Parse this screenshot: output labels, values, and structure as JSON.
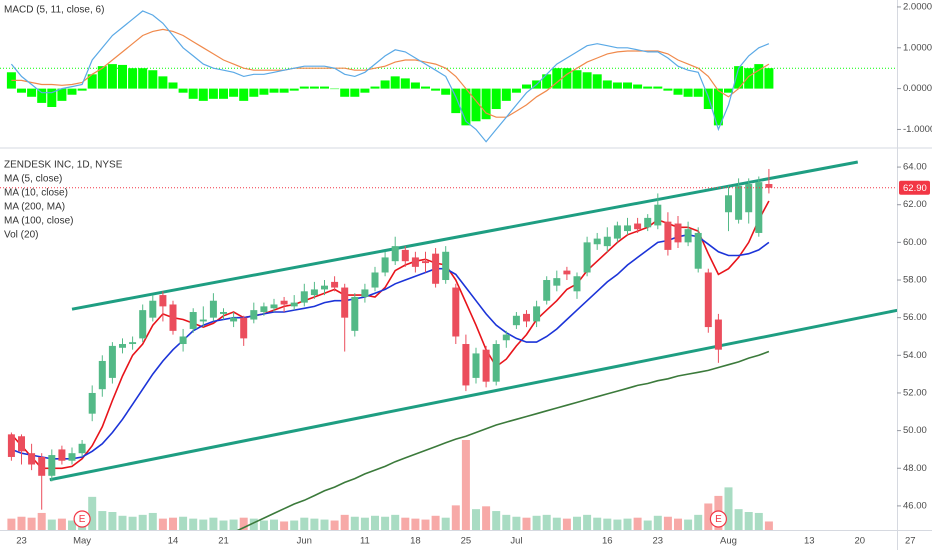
{
  "chart_data": [
    {
      "type": "macd",
      "title": "MACD (5, 11, close, 6)",
      "ylim": [
        -1.43,
        2.17
      ],
      "yticks": [
        {
          "value": 2,
          "label": "2.0000"
        },
        {
          "value": 1,
          "label": "1.0000"
        },
        {
          "value": 0,
          "label": "0.0000"
        },
        {
          "value": -1,
          "label": "-1.0000"
        }
      ],
      "histogram": {
        "color": "#00ff00",
        "values": [
          0.4,
          -0.1,
          -0.2,
          -0.35,
          -0.45,
          -0.3,
          -0.15,
          -0.05,
          0.35,
          0.55,
          0.6,
          0.58,
          0.5,
          0.5,
          0.45,
          0.3,
          0.15,
          -0.1,
          -0.25,
          -0.3,
          -0.25,
          -0.25,
          -0.2,
          -0.3,
          -0.2,
          -0.15,
          -0.1,
          -0.1,
          -0.05,
          0.05,
          0.05,
          0.05,
          0.0,
          -0.2,
          -0.2,
          -0.1,
          0.05,
          0.2,
          0.3,
          0.25,
          0.15,
          0.05,
          -0.05,
          -0.15,
          -0.6,
          -0.9,
          -0.8,
          -0.75,
          -0.5,
          -0.3,
          -0.1,
          0.1,
          0.2,
          0.35,
          0.5,
          0.5,
          0.45,
          0.4,
          0.35,
          0.2,
          0.15,
          0.15,
          0.1,
          0.05,
          0.05,
          -0.05,
          -0.15,
          -0.2,
          -0.2,
          -0.5,
          -0.9,
          -0.1,
          0.55,
          0.5,
          0.6,
          0.5,
          null,
          null,
          null,
          null,
          null,
          null,
          null,
          null,
          null,
          null,
          null,
          null,
          null,
          null
        ]
      },
      "macd": {
        "color": "#5aa9e6",
        "values": [
          0.6,
          0.3,
          0.1,
          -0.1,
          -0.1,
          0.0,
          0.05,
          0.1,
          0.7,
          1.0,
          1.3,
          1.5,
          1.7,
          1.9,
          1.8,
          1.6,
          1.3,
          1.0,
          0.8,
          0.6,
          0.5,
          0.45,
          0.4,
          0.3,
          0.35,
          0.35,
          0.4,
          0.45,
          0.5,
          0.55,
          0.55,
          0.55,
          0.5,
          0.35,
          0.3,
          0.4,
          0.6,
          0.8,
          0.95,
          0.9,
          0.75,
          0.6,
          0.45,
          0.3,
          -0.2,
          -0.8,
          -1.0,
          -1.3,
          -1.0,
          -0.7,
          -0.4,
          -0.1,
          0.1,
          0.35,
          0.6,
          0.75,
          0.9,
          1.05,
          1.1,
          1.05,
          1.0,
          1.0,
          0.95,
          0.9,
          0.9,
          0.75,
          0.55,
          0.45,
          0.4,
          -0.2,
          -1.0,
          -0.4,
          0.5,
          0.8,
          1.0,
          1.1,
          null,
          null,
          null,
          null,
          null,
          null,
          null,
          null,
          null,
          null,
          null,
          null,
          null,
          null
        ]
      },
      "signal": {
        "color": "#f0894b",
        "values": [
          0.2,
          0.2,
          0.15,
          0.1,
          0.1,
          0.08,
          0.1,
          0.15,
          0.35,
          0.5,
          0.7,
          0.9,
          1.1,
          1.3,
          1.4,
          1.45,
          1.4,
          1.3,
          1.15,
          1.0,
          0.85,
          0.7,
          0.6,
          0.5,
          0.45,
          0.45,
          0.45,
          0.45,
          0.5,
          0.5,
          0.5,
          0.5,
          0.5,
          0.5,
          0.45,
          0.45,
          0.5,
          0.55,
          0.65,
          0.7,
          0.7,
          0.65,
          0.6,
          0.5,
          0.3,
          0.0,
          -0.3,
          -0.6,
          -0.7,
          -0.7,
          -0.55,
          -0.4,
          -0.2,
          -0.05,
          0.15,
          0.35,
          0.5,
          0.65,
          0.75,
          0.85,
          0.9,
          0.92,
          0.92,
          0.92,
          0.92,
          0.85,
          0.7,
          0.6,
          0.5,
          0.3,
          -0.05,
          -0.2,
          0.0,
          0.3,
          0.45,
          0.6,
          null,
          null,
          null,
          null,
          null,
          null,
          null,
          null,
          null,
          null,
          null,
          null,
          null,
          null
        ]
      }
    },
    {
      "type": "candlestick",
      "title": "ZENDESK INC, 1D, NYSE",
      "categories": [
        null,
        "23",
        null,
        null,
        null,
        null,
        null,
        "May",
        null,
        null,
        null,
        null,
        null,
        null,
        null,
        null,
        "14",
        null,
        null,
        null,
        null,
        "21",
        null,
        null,
        null,
        null,
        null,
        null,
        null,
        "Jun",
        null,
        null,
        null,
        null,
        null,
        "11",
        null,
        null,
        null,
        null,
        "18",
        null,
        null,
        null,
        null,
        "25",
        null,
        null,
        null,
        null,
        "Jul",
        null,
        null,
        null,
        null,
        null,
        null,
        null,
        null,
        "16",
        null,
        null,
        null,
        null,
        "23",
        null,
        null,
        null,
        null,
        null,
        null,
        "Aug",
        null,
        null,
        null,
        null,
        null,
        null,
        null,
        "13",
        null,
        null,
        null,
        null,
        "20",
        null,
        null,
        null,
        null,
        "27"
      ],
      "open": [
        49.8,
        49.7,
        48.8,
        48.6,
        47.6,
        49.0,
        48.4,
        48.8,
        50.9,
        52.2,
        52.8,
        54.4,
        54.6,
        54.9,
        56.0,
        57.2,
        56.7,
        54.6,
        55.4,
        55.8,
        56.0,
        56.2,
        55.8,
        56.0,
        55.9,
        56.3,
        56.5,
        56.9,
        56.6,
        56.8,
        57.2,
        57.5,
        57.9,
        57.6,
        55.3,
        57.1,
        57.6,
        58.4,
        59.0,
        59.6,
        59.2,
        59.0,
        59.4,
        58.0,
        57.6,
        54.6,
        52.8,
        54.3,
        52.6,
        54.8,
        55.6,
        56.2,
        55.8,
        56.9,
        57.7,
        58.5,
        57.4,
        58.4,
        59.9,
        59.8,
        60.2,
        60.6,
        61.0,
        60.8,
        60.9,
        61.1,
        61.0,
        60.0,
        58.6,
        58.4,
        55.9,
        61.6,
        61.2,
        61.6,
        60.5,
        63.1,
        null,
        null,
        null,
        null,
        null,
        null,
        null,
        null,
        null,
        null,
        null,
        null,
        null,
        null
      ],
      "high": [
        49.9,
        49.8,
        49.3,
        48.8,
        49.0,
        49.2,
        49.1,
        49.5,
        52.4,
        54.0,
        54.7,
        54.9,
        55.0,
        56.7,
        57.2,
        57.4,
        56.9,
        55.4,
        56.5,
        56.6,
        57.3,
        56.5,
        56.3,
        56.1,
        56.8,
        56.8,
        57.0,
        57.1,
        57.2,
        57.8,
        57.9,
        58.0,
        58.2,
        57.8,
        57.3,
        57.8,
        58.7,
        59.5,
        60.3,
        59.8,
        59.5,
        59.5,
        59.7,
        59.8,
        57.8,
        55.1,
        54.4,
        54.5,
        54.8,
        55.3,
        56.3,
        56.4,
        56.9,
        58.2,
        58.5,
        58.7,
        58.4,
        60.3,
        60.5,
        60.8,
        61.1,
        61.3,
        61.3,
        61.5,
        62.6,
        61.6,
        61.4,
        61.1,
        60.8,
        58.6,
        56.2,
        63.0,
        63.4,
        63.4,
        63.5,
        63.9,
        null,
        null,
        null,
        null,
        null,
        null,
        null,
        null,
        null,
        null,
        null,
        null,
        null,
        null
      ],
      "low": [
        48.4,
        48.2,
        47.9,
        45.8,
        47.3,
        48.2,
        48.2,
        48.6,
        50.5,
        51.8,
        52.5,
        54.1,
        54.3,
        54.7,
        55.8,
        55.8,
        55.1,
        54.2,
        55.2,
        55.5,
        55.8,
        55.9,
        55.5,
        54.5,
        55.7,
        56.1,
        56.3,
        56.3,
        56.4,
        56.6,
        57.0,
        57.2,
        57.4,
        54.2,
        55.0,
        56.8,
        57.4,
        58.2,
        58.8,
        58.7,
        58.4,
        58.4,
        57.6,
        57.8,
        54.6,
        52.1,
        52.5,
        52.3,
        52.4,
        54.4,
        55.4,
        55.5,
        55.5,
        56.7,
        57.4,
        58.0,
        57.0,
        58.2,
        59.6,
        59.5,
        60.0,
        60.4,
        60.5,
        60.6,
        60.7,
        59.3,
        59.7,
        59.8,
        58.4,
        55.2,
        53.6,
        60.6,
        61.0,
        61.0,
        60.3,
        62.6,
        null,
        null,
        null,
        null,
        null,
        null,
        null,
        null,
        null,
        null,
        null,
        null,
        null,
        null
      ],
      "close": [
        48.6,
        48.9,
        48.2,
        47.6,
        48.7,
        48.4,
        48.8,
        49.3,
        52.0,
        53.7,
        54.5,
        54.6,
        54.7,
        56.4,
        56.9,
        56.6,
        55.3,
        55.0,
        56.3,
        55.9,
        56.9,
        56.3,
        56.0,
        54.9,
        56.4,
        56.6,
        56.7,
        56.7,
        56.8,
        57.4,
        57.5,
        57.7,
        57.6,
        56.0,
        57.1,
        57.5,
        58.4,
        59.2,
        59.8,
        59.0,
        58.7,
        58.9,
        57.8,
        59.5,
        55.0,
        52.4,
        54.1,
        52.6,
        54.6,
        55.1,
        56.1,
        55.8,
        56.6,
        58.0,
        58.1,
        58.3,
        58.2,
        60.0,
        60.2,
        60.3,
        60.9,
        60.9,
        60.7,
        61.3,
        62.0,
        59.6,
        60.0,
        60.7,
        60.5,
        55.5,
        54.3,
        62.5,
        63.0,
        63.1,
        63.2,
        62.9,
        null,
        null,
        null,
        null,
        null,
        null,
        null,
        null,
        null,
        null,
        null,
        null,
        null,
        null
      ],
      "up_color": "#53b987",
      "down_color": "#eb4d5c",
      "ylim": [
        44.72,
        64.96
      ],
      "yticks": [
        {
          "value": 46,
          "label": "46.00"
        },
        {
          "value": 48,
          "label": "48.00"
        },
        {
          "value": 50,
          "label": "50.00"
        },
        {
          "value": 52,
          "label": "52.00"
        },
        {
          "value": 54,
          "label": "54.00"
        },
        {
          "value": 56,
          "label": "56.00"
        },
        {
          "value": 58,
          "label": "58.00"
        },
        {
          "value": 60,
          "label": "60.00"
        },
        {
          "value": 62,
          "label": "62.00"
        },
        {
          "value": 64,
          "label": "64.00"
        }
      ],
      "series": [
        {
          "name": "MA (5, close)",
          "color": "#e8141b",
          "values": [
            49.8,
            49.2,
            48.6,
            48.0,
            48.0,
            48.0,
            48.1,
            48.5,
            49.2,
            50.2,
            51.6,
            52.9,
            54.0,
            54.6,
            55.6,
            56.2,
            56.0,
            55.9,
            55.7,
            55.5,
            55.7,
            56.1,
            56.3,
            56.0,
            56.1,
            56.2,
            56.4,
            56.6,
            56.7,
            56.9,
            57.1,
            57.3,
            57.5,
            57.2,
            57.2,
            57.2,
            57.1,
            57.6,
            58.5,
            58.8,
            59.0,
            59.1,
            58.9,
            58.8,
            58.0,
            56.8,
            55.6,
            54.3,
            53.4,
            53.8,
            54.5,
            55.1,
            55.9,
            56.4,
            56.9,
            57.5,
            57.8,
            58.5,
            59.0,
            59.5,
            60.0,
            60.4,
            60.6,
            60.8,
            61.2,
            61.0,
            60.8,
            60.8,
            60.6,
            59.4,
            58.3,
            58.6,
            59.2,
            60.0,
            61.2,
            62.2,
            null,
            null,
            null,
            null,
            null,
            null,
            null,
            null,
            null,
            null,
            null,
            null,
            null,
            null
          ]
        },
        {
          "name": "MA (10, close)",
          "color": "#1c34d8",
          "values": [
            49.0,
            48.8,
            48.7,
            48.6,
            48.5,
            48.5,
            48.5,
            48.6,
            48.9,
            49.3,
            49.9,
            50.6,
            51.4,
            52.2,
            53.0,
            53.7,
            54.3,
            54.8,
            55.3,
            55.6,
            55.8,
            55.9,
            56.0,
            56.0,
            56.1,
            56.2,
            56.3,
            56.3,
            56.4,
            56.5,
            56.6,
            56.8,
            56.9,
            56.9,
            57.0,
            57.1,
            57.3,
            57.5,
            57.8,
            58.0,
            58.2,
            58.4,
            58.6,
            58.6,
            58.3,
            57.6,
            56.9,
            56.2,
            55.6,
            55.2,
            54.9,
            54.7,
            54.7,
            55.0,
            55.4,
            55.9,
            56.4,
            56.9,
            57.4,
            57.9,
            58.3,
            58.8,
            59.2,
            59.6,
            60.0,
            60.1,
            60.3,
            60.4,
            60.3,
            59.9,
            59.5,
            59.3,
            59.3,
            59.4,
            59.6,
            60.0,
            null,
            null,
            null,
            null,
            null,
            null,
            null,
            null,
            null,
            null,
            null,
            null,
            null,
            null
          ]
        },
        {
          "name": "MA (200, MA)",
          "color": "#3b7a3b",
          "values": [
            null,
            null,
            null,
            null,
            null,
            null,
            null,
            null,
            null,
            null,
            null,
            null,
            null,
            null,
            null,
            null,
            null,
            null,
            null,
            null,
            null,
            null,
            44.6,
            44.85,
            45.1,
            45.35,
            45.6,
            45.85,
            46.1,
            46.3,
            46.55,
            46.8,
            47.0,
            47.25,
            47.45,
            47.7,
            47.9,
            48.1,
            48.35,
            48.55,
            48.75,
            48.95,
            49.15,
            49.35,
            49.55,
            49.7,
            49.9,
            50.1,
            50.3,
            50.45,
            50.6,
            50.75,
            50.9,
            51.05,
            51.2,
            51.35,
            51.5,
            51.65,
            51.8,
            51.95,
            52.1,
            52.25,
            52.4,
            52.5,
            52.65,
            52.75,
            52.9,
            53.0,
            53.1,
            53.2,
            53.35,
            53.5,
            53.65,
            53.85,
            54.0,
            54.2,
            null,
            null,
            null,
            null,
            null,
            null,
            null,
            null,
            null,
            null,
            null,
            null,
            null,
            null
          ]
        },
        {
          "name": "MA (100, close)"
        }
      ],
      "volume": {
        "name": "Vol (20)",
        "up_color": "#a9dcc3",
        "down_color": "#f7a9a7",
        "values": [
          1.2,
          1.4,
          1.3,
          1.8,
          1.1,
          1.2,
          1.0,
          1.3,
          3.5,
          2.0,
          1.9,
          1.5,
          1.4,
          1.6,
          1.8,
          1.2,
          1.3,
          1.4,
          1.2,
          1.1,
          1.3,
          1.0,
          1.1,
          1.3,
          1.2,
          1.0,
          1.1,
          0.9,
          1.0,
          1.3,
          1.2,
          1.1,
          1.0,
          1.6,
          1.4,
          1.3,
          1.5,
          1.4,
          1.6,
          1.3,
          1.2,
          1.1,
          1.5,
          1.3,
          2.6,
          9.5,
          2.2,
          2.5,
          2.0,
          1.6,
          1.4,
          1.3,
          1.5,
          1.6,
          1.3,
          1.2,
          1.4,
          1.6,
          1.3,
          1.2,
          1.1,
          1.2,
          1.3,
          1.0,
          1.5,
          1.4,
          1.2,
          1.1,
          1.6,
          2.8,
          3.6,
          4.5,
          2.2,
          1.9,
          1.8,
          0.9,
          null,
          null,
          null,
          null,
          null,
          null,
          null,
          null,
          null,
          null,
          null,
          null,
          null,
          null
        ]
      },
      "trend_lines": [
        {
          "color": "#1e9e82",
          "x": [
            6,
            83.8
          ],
          "y": [
            56.45,
            64.27
          ]
        },
        {
          "color": "#1e9e82",
          "x": [
            3.8,
            87.7
          ],
          "y": [
            47.39,
            56.39
          ]
        }
      ],
      "last_price": {
        "value": 62.9,
        "label": "62.90",
        "color": "#f23645"
      },
      "events": [
        {
          "index": 7,
          "label": "E"
        },
        {
          "index": 70,
          "label": "E"
        }
      ]
    }
  ]
}
